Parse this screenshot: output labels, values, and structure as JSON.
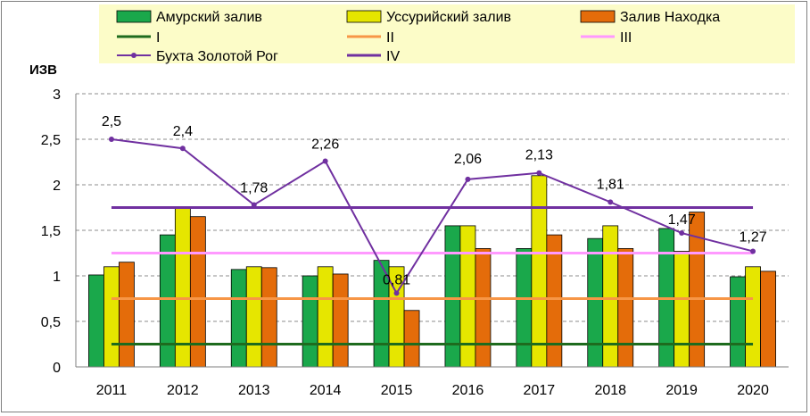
{
  "chart_data": {
    "type": "bar",
    "ylabel": "ИЗВ",
    "ylim": [
      0,
      3
    ],
    "yticks": [
      "0",
      "0,5",
      "1",
      "1,5",
      "2",
      "2,5",
      "3"
    ],
    "ytick_values": [
      0,
      0.5,
      1,
      1.5,
      2,
      2.5,
      3
    ],
    "grid": "horizontal dashed",
    "legend_position": "top",
    "categories": [
      "2011",
      "2012",
      "2013",
      "2014",
      "2015",
      "2016",
      "2017",
      "2018",
      "2019",
      "2020"
    ],
    "bar_series": [
      {
        "name": "Амурский залив",
        "color": "#1aa84b",
        "values": [
          1.01,
          1.45,
          1.07,
          1.0,
          1.17,
          1.55,
          1.3,
          1.41,
          1.52,
          0.99
        ]
      },
      {
        "name": "Уссурийский залив",
        "color": "#e6e600",
        "values": [
          1.1,
          1.75,
          1.1,
          1.1,
          1.1,
          1.55,
          2.1,
          1.55,
          1.27,
          1.1
        ]
      },
      {
        "name": "Залив Находка",
        "color": "#e46c0a",
        "values": [
          1.15,
          1.65,
          1.09,
          1.02,
          0.62,
          1.3,
          1.45,
          1.3,
          1.7,
          1.05
        ]
      }
    ],
    "line_series": {
      "name": "Бухта Золотой Рог",
      "color": "#7030a0",
      "values": [
        2.5,
        2.4,
        1.78,
        2.26,
        0.81,
        2.06,
        2.13,
        1.81,
        1.47,
        1.27
      ],
      "labels": [
        "2,5",
        "2,4",
        "1,78",
        "2,26",
        "0,81",
        "2,06",
        "2,13",
        "1,81",
        "1,47",
        "1,27"
      ]
    },
    "thresholds": [
      {
        "name": "I",
        "value": 0.25,
        "color": "#1e6b1e"
      },
      {
        "name": "II",
        "value": 0.75,
        "color": "#f79646"
      },
      {
        "name": "III",
        "value": 1.25,
        "color": "#ff99ff"
      },
      {
        "name": "IV",
        "value": 1.75,
        "color": "#7030a0"
      }
    ],
    "legend_background": "#fcfcc8"
  }
}
